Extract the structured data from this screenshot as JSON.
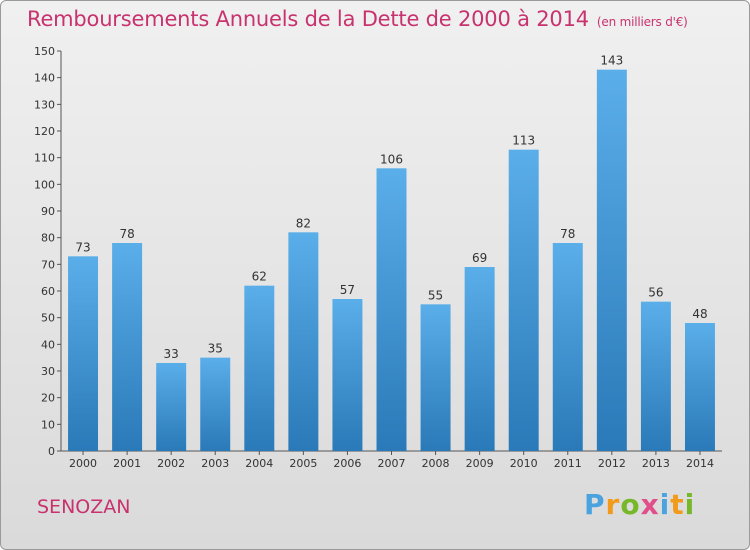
{
  "header": {
    "title": "Remboursements Annuels de la Dette de 2000 à 2014",
    "subtitle": "(en milliers d'€)"
  },
  "commune": "SENOZAN",
  "logo": {
    "text": "Proxiti"
  },
  "colors": {
    "bar_top": "#5aaee9",
    "bar_bottom": "#2a79b8",
    "title": "#c8326e"
  },
  "chart_data": {
    "type": "bar",
    "title": "Remboursements Annuels de la Dette de 2000 à 2014",
    "unit": "(en milliers d'€)",
    "categories": [
      "2000",
      "2001",
      "2002",
      "2003",
      "2004",
      "2005",
      "2006",
      "2007",
      "2008",
      "2009",
      "2010",
      "2011",
      "2012",
      "2013",
      "2014"
    ],
    "values": [
      73,
      78,
      33,
      35,
      62,
      82,
      57,
      106,
      55,
      69,
      113,
      78,
      143,
      56,
      48
    ],
    "ylim": [
      0,
      150
    ],
    "yticks": [
      0,
      10,
      20,
      30,
      40,
      50,
      60,
      70,
      80,
      90,
      100,
      110,
      120,
      130,
      140,
      150
    ],
    "grid": false,
    "xlabel": "",
    "ylabel": ""
  }
}
